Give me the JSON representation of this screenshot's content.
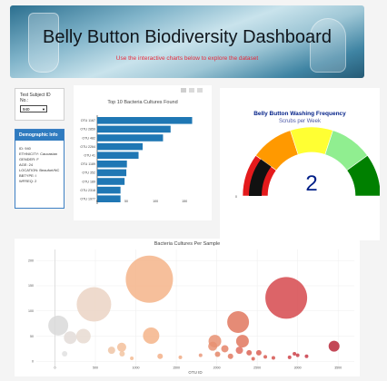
{
  "header": {
    "title": "Belly Button Biodiversity Dashboard",
    "subtitle": "Use the interactive charts below to explore the dataset"
  },
  "selector": {
    "label": "Test Subject ID No.:",
    "value": "940"
  },
  "demographics": {
    "title": "Demographic Info",
    "rows": [
      "ID: 940",
      "ETHNICITY: Caucasian",
      "GENDER: F",
      "AGE: 24",
      "LOCATION: Beaufort/NC",
      "BBTYPE: I",
      "WFREQ: 2"
    ]
  },
  "colors": {
    "header_text": "#10161c",
    "subtitle_text": "#e8293a",
    "panel_header": "#2f7bbf",
    "bar": "#1f77b4",
    "gauge_title": "#001f87",
    "gauge_value": "#001f87"
  },
  "icons": [
    "camera-icon",
    "zoom-icon",
    "home-icon"
  ],
  "chart_data": [
    {
      "type": "bar",
      "orientation": "horizontal",
      "title": "Top 10 Bacteria Cultures Found",
      "categories": [
        "OTU 1167",
        "OTU 2859",
        "OTU 482",
        "OTU 2264",
        "OTU 41",
        "OTU 1189",
        "OTU 352",
        "OTU 189",
        "OTU 2318",
        "OTU 1977"
      ],
      "values": [
        163,
        126,
        113,
        78,
        71,
        51,
        50,
        47,
        40,
        40
      ],
      "xlim": [
        0,
        170
      ],
      "xticks": [
        "0",
        "50",
        "100",
        "150"
      ]
    },
    {
      "type": "gauge",
      "title": "Belly Button Washing Frequency",
      "subtitle": "Scrubs per Week",
      "value": 2,
      "range": [
        0,
        10
      ],
      "end_labels": [
        "0",
        "10"
      ],
      "bands": [
        {
          "from": 0,
          "to": 2,
          "color": "#e41a1c"
        },
        {
          "from": 2,
          "to": 4,
          "color": "#ff9900"
        },
        {
          "from": 4,
          "to": 6,
          "color": "#ffff33"
        },
        {
          "from": 6,
          "to": 8,
          "color": "#90ee90"
        },
        {
          "from": 8,
          "to": 10,
          "color": "#008000"
        }
      ]
    },
    {
      "type": "scatter",
      "title": "Bacteria Cultures Per Sample",
      "xlabel": "OTU ID",
      "xticks": [
        "0",
        "500",
        "1000",
        "1500",
        "2000",
        "2500",
        "3000",
        "3500"
      ],
      "yticks": [
        "0",
        "50",
        "100",
        "150",
        "200"
      ],
      "xlim": [
        -230,
        3700
      ],
      "ylim": [
        -12,
        222
      ],
      "points": [
        {
          "x": 1167,
          "y": 163,
          "r": 26,
          "color": "#f5b48a"
        },
        {
          "x": 2859,
          "y": 126,
          "r": 23,
          "color": "#d6494e"
        },
        {
          "x": 482,
          "y": 113,
          "r": 19,
          "color": "#ebd3c4"
        },
        {
          "x": 2264,
          "y": 78,
          "r": 12,
          "color": "#e0775e"
        },
        {
          "x": 41,
          "y": 71,
          "r": 11,
          "color": "#d9d9d9"
        },
        {
          "x": 1189,
          "y": 51,
          "r": 9,
          "color": "#f5b48a"
        },
        {
          "x": 352,
          "y": 50,
          "r": 8,
          "color": "#e8dad1"
        },
        {
          "x": 189,
          "y": 47,
          "r": 7,
          "color": "#e3dcd8"
        },
        {
          "x": 2318,
          "y": 40,
          "r": 7,
          "color": "#e0775e"
        },
        {
          "x": 1977,
          "y": 40,
          "r": 7,
          "color": "#e79072"
        },
        {
          "x": 3450,
          "y": 30,
          "r": 6,
          "color": "#b8283a"
        },
        {
          "x": 1950,
          "y": 30,
          "r": 5,
          "color": "#e79072"
        },
        {
          "x": 2280,
          "y": 22,
          "r": 4,
          "color": "#e07060"
        },
        {
          "x": 2100,
          "y": 25,
          "r": 4,
          "color": "#e58468"
        },
        {
          "x": 2400,
          "y": 17,
          "r": 3,
          "color": "#db6456"
        },
        {
          "x": 825,
          "y": 28,
          "r": 5,
          "color": "#f3c09b"
        },
        {
          "x": 700,
          "y": 22,
          "r": 4,
          "color": "#efc4a6"
        },
        {
          "x": 830,
          "y": 15,
          "r": 3,
          "color": "#f2c4a1"
        },
        {
          "x": 1300,
          "y": 10,
          "r": 3,
          "color": "#f3b088"
        },
        {
          "x": 2520,
          "y": 17,
          "r": 3,
          "color": "#d96055"
        },
        {
          "x": 2170,
          "y": 10,
          "r": 3,
          "color": "#e27a62"
        },
        {
          "x": 2010,
          "y": 14,
          "r": 3,
          "color": "#e48769"
        },
        {
          "x": 1800,
          "y": 12,
          "r": 2,
          "color": "#e9987a"
        },
        {
          "x": 1550,
          "y": 8,
          "r": 2,
          "color": "#f0aa84"
        },
        {
          "x": 3000,
          "y": 12,
          "r": 2,
          "color": "#ca3f49"
        },
        {
          "x": 2900,
          "y": 8,
          "r": 2,
          "color": "#cf4349"
        },
        {
          "x": 3110,
          "y": 10,
          "r": 2,
          "color": "#c83948"
        },
        {
          "x": 2700,
          "y": 7,
          "r": 2,
          "color": "#d5524e"
        },
        {
          "x": 2600,
          "y": 9,
          "r": 2,
          "color": "#d85a52"
        },
        {
          "x": 120,
          "y": 15,
          "r": 3,
          "color": "#e1e1e1"
        },
        {
          "x": 950,
          "y": 6,
          "r": 2,
          "color": "#f4bb92"
        },
        {
          "x": 2960,
          "y": 15,
          "r": 2,
          "color": "#cd4148"
        },
        {
          "x": 2450,
          "y": 5,
          "r": 2,
          "color": "#db6254"
        }
      ]
    }
  ]
}
